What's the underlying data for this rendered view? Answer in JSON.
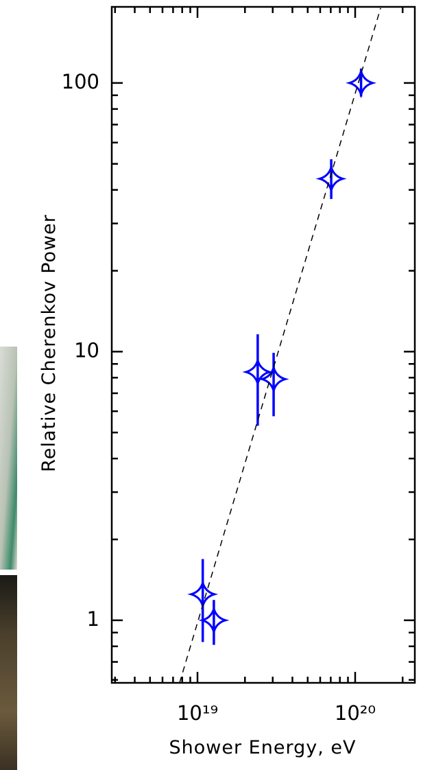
{
  "chart_data": {
    "type": "scatter",
    "xlabel": "Shower Energy, eV",
    "ylabel": "Relative Cherenkov Power",
    "xscale": "log",
    "yscale": "log",
    "xlim": [
      2.86e+18,
      2.39e+20
    ],
    "ylim": [
      0.585,
      192
    ],
    "xticks": [
      {
        "value": 1e+19,
        "label": "10¹⁹"
      },
      {
        "value": 1e+20,
        "label": "10²⁰"
      }
    ],
    "xminor_ticks": [
      3e+18,
      4e+18,
      5e+18,
      6e+18,
      7e+18,
      8e+18,
      9e+18,
      2e+19,
      3e+19,
      4e+19,
      5e+19,
      6e+19,
      7e+19,
      8e+19,
      9e+19,
      2e+20
    ],
    "yticks": [
      1,
      10,
      100
    ],
    "yminor_ticks": [
      0.6,
      0.7,
      0.8,
      0.9,
      2,
      3,
      4,
      5,
      6,
      7,
      8,
      9,
      20,
      30,
      40,
      50,
      60,
      70,
      80,
      90
    ],
    "series": [
      {
        "color": "#0000ff",
        "x": [
          1.08e+19,
          1.27e+19,
          2.41e+19,
          3.04e+19,
          7.05e+19,
          1.09e+20
        ],
        "values": [
          1.25,
          1.0,
          8.4,
          7.9,
          44,
          100
        ],
        "err_minus": [
          0.42,
          0.19,
          3.1,
          2.15,
          7,
          11
        ],
        "err_plus": [
          0.44,
          0.19,
          3.2,
          2.0,
          8,
          13
        ]
      },
      {
        "color": "#000000",
        "style": "dashed",
        "x": [
          7.7e+18,
          1.45e+20
        ],
        "values": [
          0.585,
          190
        ]
      }
    ]
  }
}
